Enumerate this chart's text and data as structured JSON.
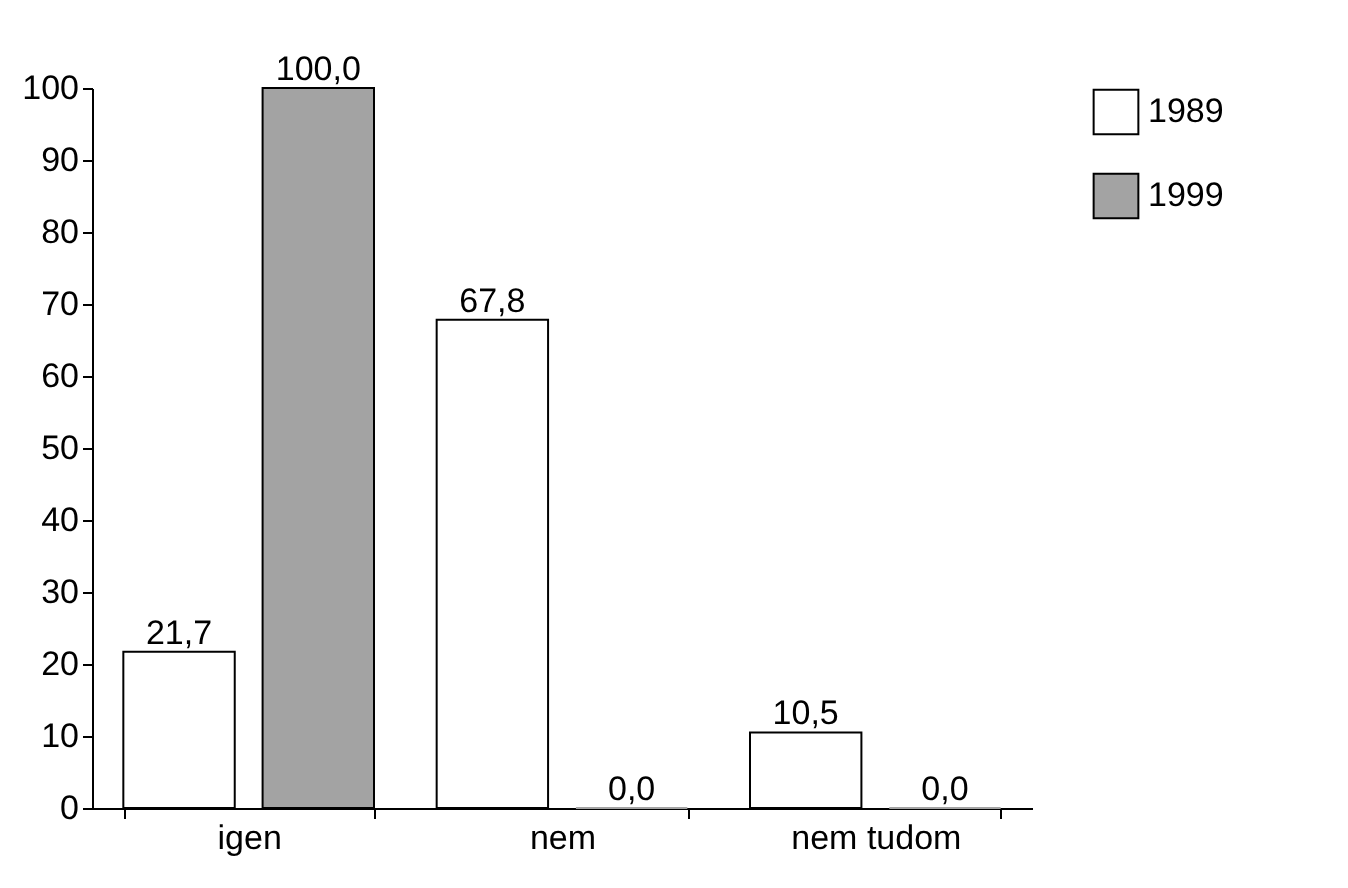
{
  "chart_data": {
    "type": "bar",
    "categories": [
      "igen",
      "nem",
      "nem tudom"
    ],
    "series": [
      {
        "name": "1989",
        "color": "#ffffff",
        "values": [
          21.7,
          67.8,
          10.5
        ],
        "value_labels": [
          "21,7",
          "67,8",
          "10,5"
        ]
      },
      {
        "name": "1999",
        "color": "#a3a3a3",
        "values": [
          100.0,
          0.0,
          0.0
        ],
        "value_labels": [
          "100,0",
          "0,0",
          "0,0"
        ]
      }
    ],
    "ylim": [
      0,
      100
    ],
    "yticks": [
      0,
      10,
      20,
      30,
      40,
      50,
      60,
      70,
      80,
      90,
      100
    ],
    "grid": false,
    "legend": "right"
  }
}
